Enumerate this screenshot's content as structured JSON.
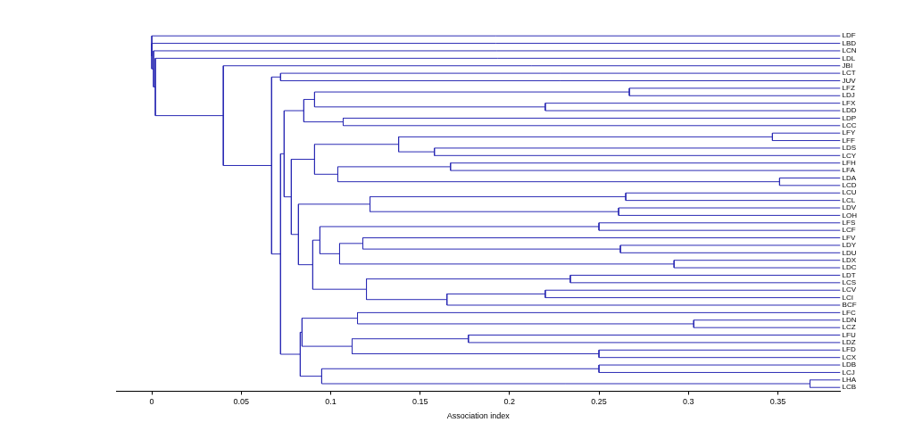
{
  "chart_data": {
    "type": "dendrogram",
    "x_label": "Association index",
    "color": "#2a2ab4",
    "xlim": [
      -0.02,
      0.385
    ],
    "xticks": [
      0,
      0.05,
      0.1,
      0.15,
      0.2,
      0.25,
      0.3,
      0.35
    ],
    "tree": {
      "height": 0,
      "children": [
        "LDF",
        {
          "height": 0,
          "children": [
            "LBD",
            {
              "height": 0.001,
              "children": [
                "LCN",
                {
                  "height": 0.002,
                  "children": [
                    "LDL",
                    {
                      "height": 0.04,
                      "children": [
                        "JBI",
                        {
                          "height": 0.067,
                          "children": [
                            {
                              "height": 0.072,
                              "children": [
                                "LCT",
                                "JUV"
                              ]
                            },
                            {
                              "height": 0.072,
                              "children": [
                                {
                                  "height": 0.074,
                                  "children": [
                                    {
                                      "height": 0.085,
                                      "children": [
                                        {
                                          "height": 0.091,
                                          "children": [
                                            {
                                              "height": 0.267,
                                              "children": [
                                                "LFZ",
                                                "LDJ"
                                              ]
                                            },
                                            {
                                              "height": 0.22,
                                              "children": [
                                                "LFX",
                                                "LDD"
                                              ]
                                            }
                                          ]
                                        },
                                        {
                                          "height": 0.107,
                                          "children": [
                                            "LDP",
                                            "LCC"
                                          ]
                                        }
                                      ]
                                    },
                                    {
                                      "height": 0.078,
                                      "children": [
                                        {
                                          "height": 0.091,
                                          "children": [
                                            {
                                              "height": 0.138,
                                              "children": [
                                                {
                                                  "height": 0.347,
                                                  "children": [
                                                    "LFY",
                                                    "LFF"
                                                  ]
                                                },
                                                {
                                                  "height": 0.158,
                                                  "children": [
                                                    "LDS",
                                                    "LCY"
                                                  ]
                                                }
                                              ]
                                            },
                                            {
                                              "height": 0.104,
                                              "children": [
                                                {
                                                  "height": 0.167,
                                                  "children": [
                                                    "LFH",
                                                    "LFA"
                                                  ]
                                                },
                                                {
                                                  "height": 0.351,
                                                  "children": [
                                                    "LDA",
                                                    "LCD"
                                                  ]
                                                }
                                              ]
                                            }
                                          ]
                                        },
                                        {
                                          "height": 0.082,
                                          "children": [
                                            {
                                              "height": 0.122,
                                              "children": [
                                                {
                                                  "height": 0.265,
                                                  "children": [
                                                    "LCU",
                                                    "LCL"
                                                  ]
                                                },
                                                {
                                                  "height": 0.261,
                                                  "children": [
                                                    "LDV",
                                                    "LOH"
                                                  ]
                                                }
                                              ]
                                            },
                                            {
                                              "height": 0.09,
                                              "children": [
                                                {
                                                  "height": 0.094,
                                                  "children": [
                                                    {
                                                      "height": 0.25,
                                                      "children": [
                                                        "LFS",
                                                        "LCF"
                                                      ]
                                                    },
                                                    {
                                                      "height": 0.105,
                                                      "children": [
                                                        {
                                                          "height": 0.118,
                                                          "children": [
                                                            "LFV",
                                                            {
                                                              "height": 0.262,
                                                              "children": [
                                                                "LDY",
                                                                "LDU"
                                                              ]
                                                            }
                                                          ]
                                                        },
                                                        {
                                                          "height": 0.292,
                                                          "children": [
                                                            "LDX",
                                                            "LDC"
                                                          ]
                                                        }
                                                      ]
                                                    }
                                                  ]
                                                },
                                                {
                                                  "height": 0.12,
                                                  "children": [
                                                    {
                                                      "height": 0.234,
                                                      "children": [
                                                        "LDT",
                                                        "LCS"
                                                      ]
                                                    },
                                                    {
                                                      "height": 0.165,
                                                      "children": [
                                                        {
                                                          "height": 0.22,
                                                          "children": [
                                                            "LCV",
                                                            "LCI"
                                                          ]
                                                        },
                                                        "BCF"
                                                      ]
                                                    }
                                                  ]
                                                }
                                              ]
                                            }
                                          ]
                                        }
                                      ]
                                    }
                                  ]
                                },
                                {
                                  "height": 0.083,
                                  "children": [
                                    {
                                      "height": 0.084,
                                      "children": [
                                        {
                                          "height": 0.115,
                                          "children": [
                                            "LFC",
                                            {
                                              "height": 0.303,
                                              "children": [
                                                "LDN",
                                                "LCZ"
                                              ]
                                            }
                                          ]
                                        },
                                        {
                                          "height": 0.112,
                                          "children": [
                                            {
                                              "height": 0.177,
                                              "children": [
                                                "LFU",
                                                "LDZ"
                                              ]
                                            },
                                            {
                                              "height": 0.25,
                                              "children": [
                                                "LFD",
                                                "LCX"
                                              ]
                                            }
                                          ]
                                        }
                                      ]
                                    },
                                    {
                                      "height": 0.095,
                                      "children": [
                                        {
                                          "height": 0.25,
                                          "children": [
                                            "LDB",
                                            "LCJ"
                                          ]
                                        },
                                        {
                                          "height": 0.368,
                                          "children": [
                                            "LHA",
                                            "LCB"
                                          ]
                                        }
                                      ]
                                    }
                                  ]
                                }
                              ]
                            }
                          ]
                        }
                      ]
                    }
                  ]
                }
              ]
            }
          ]
        }
      ]
    }
  }
}
